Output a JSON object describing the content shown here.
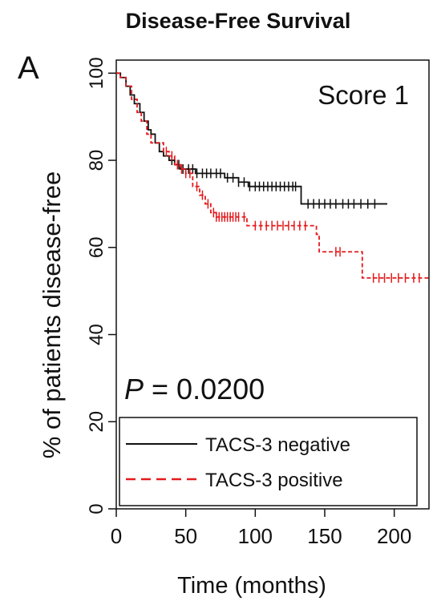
{
  "chart_data": {
    "type": "line",
    "title": "Disease-Free Survival",
    "panel_label": "A",
    "subtitle": "Score 1",
    "xlabel": "Time (months)",
    "ylabel": "% of patients disease-free",
    "xlim": [
      0,
      225
    ],
    "ylim": [
      0,
      103
    ],
    "x_ticks": [
      0,
      50,
      100,
      150,
      200
    ],
    "y_ticks": [
      0,
      20,
      40,
      60,
      80,
      100
    ],
    "grid": false,
    "legend_position": "bottom",
    "p_value_label": "P",
    "p_value_text": " = 0.0200",
    "series": [
      {
        "name": "TACS-3 negative",
        "color": "#111111",
        "dash": "solid",
        "steps": [
          [
            0,
            100
          ],
          [
            3,
            99
          ],
          [
            7,
            97
          ],
          [
            10,
            95
          ],
          [
            13,
            93
          ],
          [
            17,
            91
          ],
          [
            20,
            89
          ],
          [
            23,
            87
          ],
          [
            25,
            86
          ],
          [
            28,
            84
          ],
          [
            31,
            82
          ],
          [
            34,
            81
          ],
          [
            38,
            80
          ],
          [
            42,
            79
          ],
          [
            46,
            78
          ],
          [
            52,
            78
          ],
          [
            57,
            77
          ],
          [
            70,
            77
          ],
          [
            78,
            76
          ],
          [
            88,
            75
          ],
          [
            95,
            74
          ],
          [
            130,
            74
          ],
          [
            133,
            70
          ],
          [
            195,
            70
          ]
        ],
        "censor_x": [
          40,
          45,
          48,
          52,
          55,
          58,
          62,
          65,
          68,
          72,
          75,
          80,
          84,
          88,
          92,
          96,
          100,
          103,
          106,
          109,
          112,
          115,
          118,
          121,
          124,
          127,
          129,
          138,
          142,
          146,
          150,
          154,
          158,
          163,
          167,
          171,
          176,
          181,
          186
        ]
      },
      {
        "name": "TACS-3 positive",
        "color": "#e41a1c",
        "dash": "dashed",
        "steps": [
          [
            0,
            100
          ],
          [
            3,
            99
          ],
          [
            7,
            97
          ],
          [
            11,
            94
          ],
          [
            15,
            91
          ],
          [
            18,
            89
          ],
          [
            22,
            86
          ],
          [
            25,
            84
          ],
          [
            30,
            84
          ],
          [
            34,
            82
          ],
          [
            38,
            81
          ],
          [
            42,
            79
          ],
          [
            46,
            78
          ],
          [
            50,
            77
          ],
          [
            55,
            74
          ],
          [
            60,
            72
          ],
          [
            64,
            70
          ],
          [
            68,
            68
          ],
          [
            72,
            67
          ],
          [
            88,
            67
          ],
          [
            94,
            65
          ],
          [
            138,
            65
          ],
          [
            144,
            63
          ],
          [
            146,
            59
          ],
          [
            165,
            59
          ],
          [
            177,
            53
          ],
          [
            225,
            53
          ]
        ],
        "censor_x": [
          36,
          40,
          44,
          47,
          50,
          53,
          58,
          62,
          66,
          70,
          72,
          74,
          76,
          78,
          80,
          82,
          84,
          86,
          88,
          92,
          100,
          104,
          108,
          112,
          116,
          120,
          124,
          128,
          132,
          136,
          158,
          161,
          185,
          189,
          193,
          198,
          203,
          208,
          214,
          218
        ]
      }
    ]
  }
}
